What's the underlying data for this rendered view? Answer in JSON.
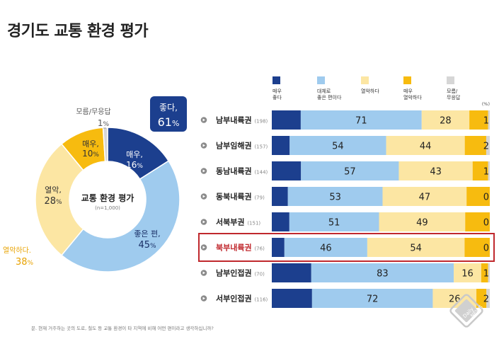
{
  "title": "경기도 교통 환경 평가",
  "note": "문. 현재 거주하는 곳의 도로, 철도 등 교통 환경이 타 지역에 비해 어떤 편이라고 생각하십니까?",
  "colors": {
    "very_good": "#1c3f8e",
    "good": "#9fcbee",
    "bad": "#fce6a3",
    "very_bad": "#f7bb0f",
    "dk": "#d6d6d6",
    "highlight": "#c0282d",
    "bullet": "#8a8a8a"
  },
  "chart_data": [
    {
      "type": "pie",
      "center_title": "교통 환경 평가",
      "center_sub": "(n=1,000)",
      "slices": [
        {
          "key": "very_good",
          "label": "매우,",
          "value": 16
        },
        {
          "key": "good",
          "label": "좋은 편,",
          "value": 45
        },
        {
          "key": "bad",
          "label": "열악,",
          "value": 28
        },
        {
          "key": "very_bad",
          "label": "매우,",
          "value": 10
        },
        {
          "key": "dk",
          "label": "모름/무응답",
          "value": 1
        }
      ],
      "callouts": [
        {
          "label": "좋다,",
          "value": "61"
        },
        {
          "label": "열악하다.",
          "value": "38"
        }
      ]
    },
    {
      "type": "bar",
      "stacked": true,
      "unit": "(%)",
      "legend": [
        {
          "key": "very_good",
          "label": "매우\n좋다"
        },
        {
          "key": "good",
          "label": "대체로\n좋은 편이다"
        },
        {
          "key": "bad",
          "label": "열악하다"
        },
        {
          "key": "very_bad",
          "label": "매우\n열악하다"
        },
        {
          "key": "dk",
          "label": "모름/\n무응답"
        }
      ],
      "rows": [
        {
          "region": "남부내륙권",
          "n": "(198)",
          "very_good": 17,
          "good": 71,
          "bad": 28,
          "very_bad": 11,
          "dk": 1,
          "labels": {
            "good": "71",
            "bad": "28",
            "dk": "1"
          }
        },
        {
          "region": "남부임해권",
          "n": "(157)",
          "very_good": 10,
          "good": 54,
          "bad": 44,
          "very_bad": 12,
          "dk": 2,
          "labels": {
            "good": "54",
            "bad": "44",
            "dk": "2"
          }
        },
        {
          "region": "동남내륙권",
          "n": "(144)",
          "very_good": 17,
          "good": 57,
          "bad": 43,
          "very_bad": 9,
          "dk": 1,
          "labels": {
            "good": "57",
            "bad": "43",
            "dk": "1"
          }
        },
        {
          "region": "동북내륙권",
          "n": "(79)",
          "very_good": 9,
          "good": 53,
          "bad": 47,
          "very_bad": 13,
          "dk": 0,
          "labels": {
            "good": "53",
            "bad": "47",
            "dk": "0"
          }
        },
        {
          "region": "서북부권",
          "n": "(151)",
          "very_good": 10,
          "good": 51,
          "bad": 49,
          "very_bad": 14,
          "dk": 0,
          "labels": {
            "good": "51",
            "bad": "49",
            "dk": "0"
          }
        },
        {
          "region": "북부내륙권",
          "n": "(76)",
          "very_good": 7,
          "good": 46,
          "bad": 54,
          "very_bad": 14,
          "dk": 0,
          "labels": {
            "good": "46",
            "bad": "54",
            "dk": "0"
          },
          "highlight": true
        },
        {
          "region": "남부인접권",
          "n": "(70)",
          "very_good": 23,
          "good": 83,
          "bad": 16,
          "very_bad": 4,
          "dk": 1,
          "labels": {
            "good": "83",
            "bad": "16",
            "dk": "1"
          }
        },
        {
          "region": "서부인접권",
          "n": "(116)",
          "very_good": 24,
          "good": 72,
          "bad": 26,
          "very_bad": 6,
          "dk": 2,
          "labels": {
            "good": "72",
            "bad": "26",
            "dk": "2"
          }
        }
      ]
    }
  ],
  "brand": {
    "line1": "Daily",
    "line2": "NEWS"
  }
}
